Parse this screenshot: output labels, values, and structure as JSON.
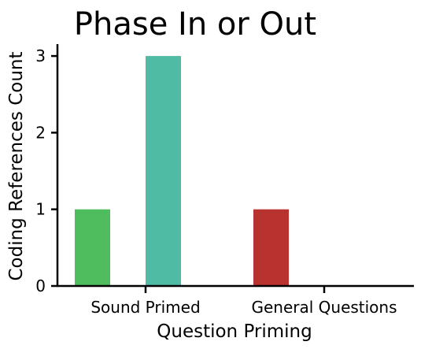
{
  "chart_data": {
    "type": "bar",
    "title": "Phase In or Out",
    "xlabel": "Question Priming",
    "ylabel": "Coding References Count",
    "categories": [
      "Sound Primed",
      "General Questions"
    ],
    "bars": [
      {
        "category": "Sound Primed",
        "value": 1,
        "color": "#4fbd5e"
      },
      {
        "category": "Sound Primed",
        "value": 3,
        "color": "#4fbba5"
      },
      {
        "category": "General Questions",
        "value": 1,
        "color": "#b8322f"
      },
      {
        "category": "General Questions",
        "value": 0,
        "color": "#4fbba5"
      }
    ],
    "yticks": [
      0,
      1,
      2,
      3
    ],
    "ylim": [
      0,
      3.15
    ],
    "grid": false,
    "legend": false
  }
}
